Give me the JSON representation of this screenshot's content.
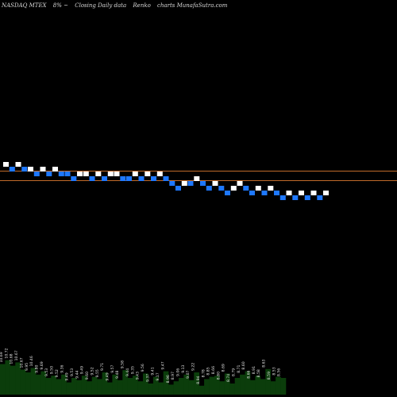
{
  "header": {
    "symbol": "NASDAQ MTEX",
    "change": "8% ~",
    "description": "Closing Daily data",
    "chart_kind": "Renko",
    "source": "charts MunafaSutra.com"
  },
  "colors": {
    "background": "#000000",
    "up_brick": "#ffffff",
    "down_brick": "#1e78ff",
    "level_line": "#c06a2a",
    "volume_bar": "#0b3d0b"
  },
  "chart_data": {
    "type": "renko",
    "levels": [
      10.0,
      9.0
    ],
    "bricks": [
      {
        "low": 10.5,
        "dir": "up"
      },
      {
        "low": 10.0,
        "dir": "down"
      },
      {
        "low": 10.5,
        "dir": "up"
      },
      {
        "low": 10.0,
        "dir": "down"
      },
      {
        "low": 10.0,
        "dir": "up"
      },
      {
        "low": 9.5,
        "dir": "down"
      },
      {
        "low": 10.0,
        "dir": "up"
      },
      {
        "low": 9.5,
        "dir": "down"
      },
      {
        "low": 10.0,
        "dir": "up"
      },
      {
        "low": 9.5,
        "dir": "down"
      },
      {
        "low": 9.5,
        "dir": "down"
      },
      {
        "low": 9.0,
        "dir": "down"
      },
      {
        "low": 9.5,
        "dir": "up"
      },
      {
        "low": 9.5,
        "dir": "up"
      },
      {
        "low": 9.0,
        "dir": "down"
      },
      {
        "low": 9.5,
        "dir": "up"
      },
      {
        "low": 9.0,
        "dir": "down"
      },
      {
        "low": 9.5,
        "dir": "up"
      },
      {
        "low": 9.5,
        "dir": "up"
      },
      {
        "low": 9.0,
        "dir": "down"
      },
      {
        "low": 9.0,
        "dir": "down"
      },
      {
        "low": 9.5,
        "dir": "up"
      },
      {
        "low": 9.0,
        "dir": "down"
      },
      {
        "low": 9.5,
        "dir": "up"
      },
      {
        "low": 9.0,
        "dir": "down"
      },
      {
        "low": 9.5,
        "dir": "up"
      },
      {
        "low": 9.0,
        "dir": "down"
      },
      {
        "low": 8.5,
        "dir": "down"
      },
      {
        "low": 8.0,
        "dir": "down"
      },
      {
        "low": 8.5,
        "dir": "up"
      },
      {
        "low": 8.5,
        "dir": "down"
      },
      {
        "low": 9.0,
        "dir": "up"
      },
      {
        "low": 8.5,
        "dir": "down"
      },
      {
        "low": 8.0,
        "dir": "down"
      },
      {
        "low": 8.5,
        "dir": "up"
      },
      {
        "low": 8.0,
        "dir": "down"
      },
      {
        "low": 7.5,
        "dir": "down"
      },
      {
        "low": 8.0,
        "dir": "up"
      },
      {
        "low": 8.5,
        "dir": "up"
      },
      {
        "low": 8.0,
        "dir": "down"
      },
      {
        "low": 7.5,
        "dir": "down"
      },
      {
        "low": 8.0,
        "dir": "up"
      },
      {
        "low": 7.5,
        "dir": "down"
      },
      {
        "low": 8.0,
        "dir": "up"
      },
      {
        "low": 7.5,
        "dir": "down"
      },
      {
        "low": 7.0,
        "dir": "down"
      },
      {
        "low": 7.5,
        "dir": "up"
      },
      {
        "low": 7.0,
        "dir": "down"
      },
      {
        "low": 7.5,
        "dir": "up"
      },
      {
        "low": 7.0,
        "dir": "down"
      },
      {
        "low": 7.5,
        "dir": "up"
      },
      {
        "low": 7.0,
        "dir": "down"
      },
      {
        "low": 7.5,
        "dir": "up"
      }
    ],
    "volume_labels": [
      "10.69",
      "10.72",
      "10.68",
      "10.67",
      "10.67",
      "9.95",
      "10.46",
      "9.80",
      "9.69",
      "9.53",
      "9.50",
      "9.52",
      "9.36",
      "9.49",
      "9.53",
      "9.44",
      "9.49",
      "9.60",
      "9.52",
      "9.55",
      "9.71",
      "9.49",
      "9.57",
      "9.48",
      "9.58",
      "9.44",
      "9.35",
      "9.43",
      "9.56",
      "9.37",
      "9.41",
      "9.17",
      "9.47",
      "8.96",
      "8.97",
      "9.06",
      "9.13",
      "9.07",
      "9.22",
      "8.94",
      "8.78",
      "8.85",
      "8.66",
      "8.80",
      "8.69",
      "8.74",
      "8.79",
      "8.71",
      "8.60",
      "8.66",
      "8.91",
      "8.58",
      "8.63",
      "8.59",
      "8.53",
      "8.56"
    ],
    "volume_heights": [
      55,
      62,
      52,
      58,
      45,
      40,
      48,
      36,
      42,
      30,
      34,
      28,
      36,
      22,
      30,
      26,
      34,
      24,
      32,
      28,
      40,
      22,
      36,
      26,
      44,
      30,
      34,
      24,
      38,
      20,
      32,
      22,
      42,
      18,
      24,
      30,
      36,
      26,
      40,
      16,
      28,
      32,
      34,
      24,
      38,
      20,
      30,
      36,
      42,
      26,
      34,
      28,
      46,
      24,
      32,
      30
    ]
  }
}
